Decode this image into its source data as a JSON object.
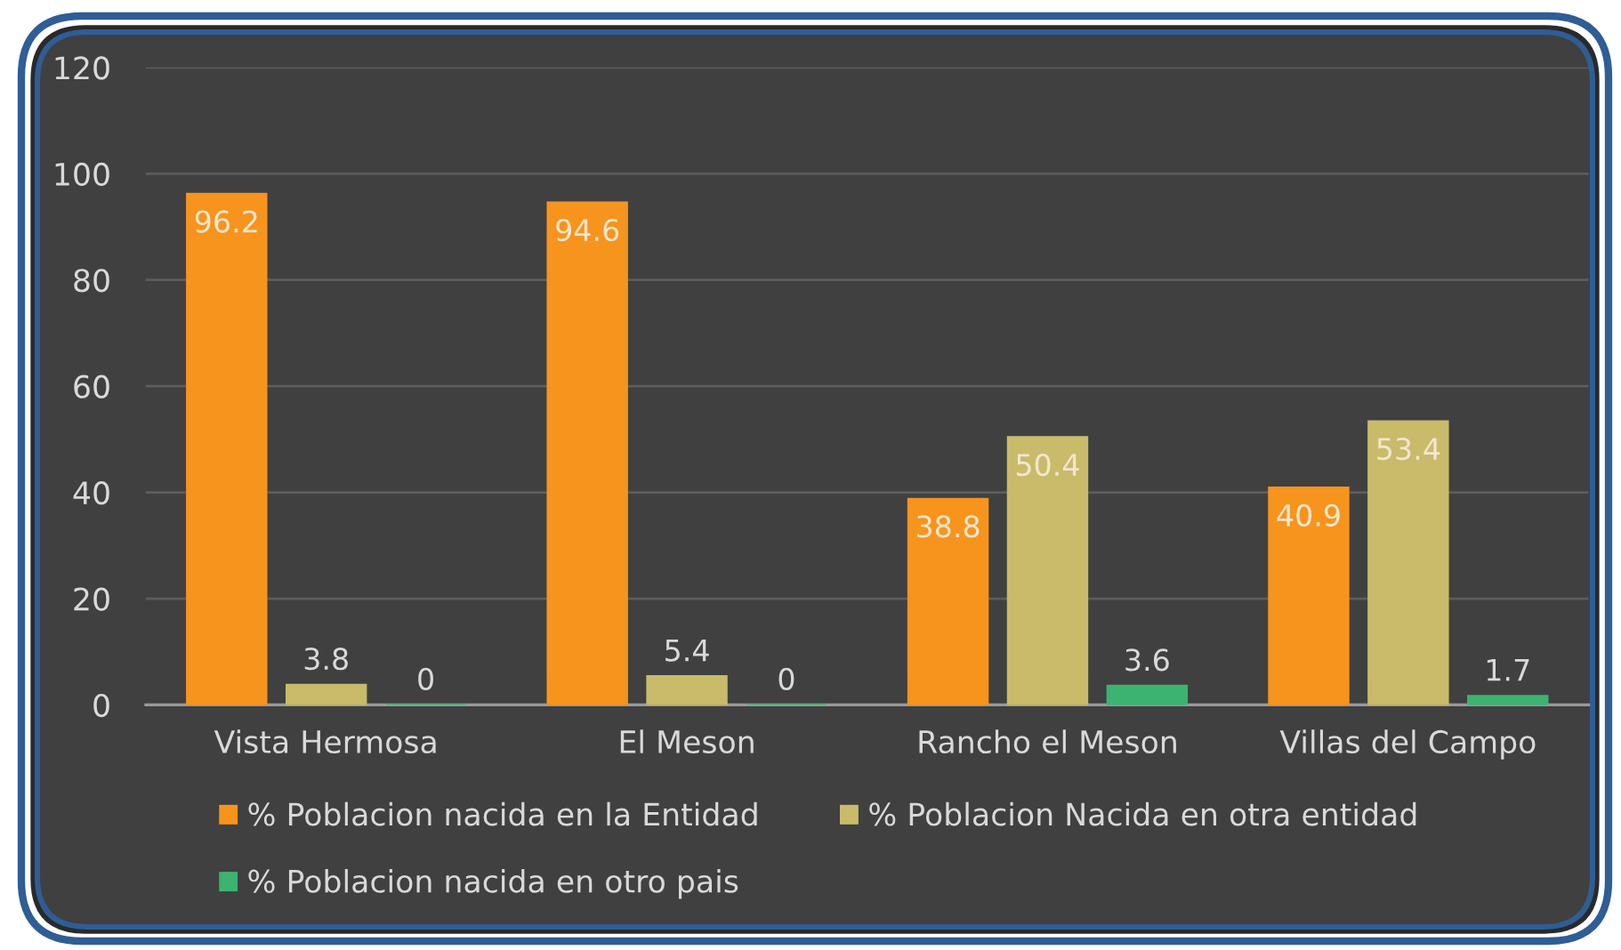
{
  "chart_data": {
    "type": "bar",
    "categories": [
      "Vista Hermosa",
      "El Meson",
      "Rancho el Meson",
      "Villas del Campo"
    ],
    "series": [
      {
        "name": "% Poblacion nacida en la Entidad",
        "color": "#f7941d",
        "values": [
          96.2,
          94.6,
          38.8,
          40.9
        ]
      },
      {
        "name": "% Poblacion Nacida en otra entidad",
        "color": "#c9bb6a",
        "values": [
          3.8,
          5.4,
          50.4,
          53.4
        ]
      },
      {
        "name": "% Poblacion nacida en otro pais",
        "color": "#3cb371",
        "values": [
          0,
          0,
          3.6,
          1.7
        ]
      }
    ],
    "ylim": [
      0,
      120
    ],
    "yticks": [
      0,
      20,
      40,
      60,
      80,
      100,
      120
    ],
    "grid": "y",
    "legend": "bottom",
    "data_labels": true
  }
}
